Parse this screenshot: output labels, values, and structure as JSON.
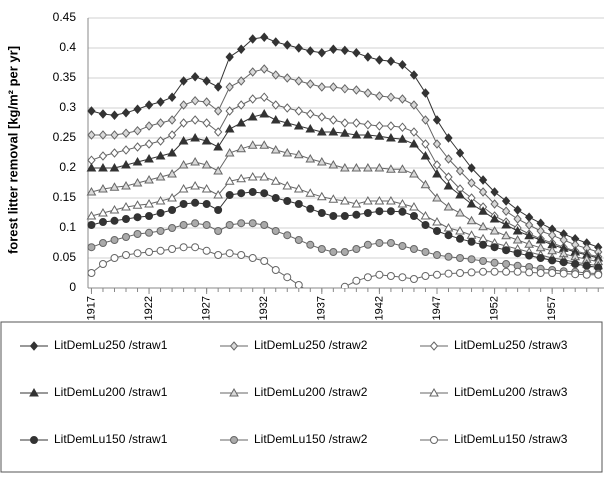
{
  "chart_data": {
    "type": "line",
    "ylabel": "forest litter removal [kg/m² per yr]",
    "x": [
      1917,
      1918,
      1919,
      1920,
      1921,
      1922,
      1923,
      1924,
      1925,
      1926,
      1927,
      1928,
      1929,
      1930,
      1931,
      1932,
      1933,
      1934,
      1935,
      1936,
      1937,
      1938,
      1939,
      1940,
      1941,
      1942,
      1943,
      1944,
      1945,
      1946,
      1947,
      1948,
      1949,
      1950,
      1951,
      1952,
      1953,
      1954,
      1955,
      1956,
      1957,
      1958,
      1959,
      1960,
      1961
    ],
    "xlim": [
      1916.7,
      1961.5
    ],
    "xticks": [
      1917,
      1922,
      1927,
      1932,
      1937,
      1942,
      1947,
      1952,
      1957
    ],
    "ylim": [
      0,
      0.45
    ],
    "yticks": [
      0,
      0.05,
      0.1,
      0.15,
      0.2,
      0.25,
      0.3,
      0.35,
      0.4,
      0.45
    ],
    "grid": true,
    "series": [
      {
        "name": "LitDemLu250 /straw1",
        "color": "#333333",
        "marker": "diamond",
        "fill": "#333333",
        "values": [
          0.295,
          0.29,
          0.288,
          0.292,
          0.298,
          0.305,
          0.31,
          0.318,
          0.345,
          0.352,
          0.345,
          0.335,
          0.385,
          0.398,
          0.415,
          0.418,
          0.41,
          0.405,
          0.4,
          0.395,
          0.392,
          0.398,
          0.396,
          0.392,
          0.385,
          0.38,
          0.378,
          0.372,
          0.355,
          0.325,
          0.28,
          0.25,
          0.225,
          0.2,
          0.18,
          0.16,
          0.145,
          0.13,
          0.118,
          0.108,
          0.098,
          0.09,
          0.082,
          0.075,
          0.068
        ]
      },
      {
        "name": "LitDemLu250 /straw2",
        "color": "#666666",
        "marker": "diamond",
        "fill": "#d9d9d9",
        "values": [
          0.255,
          0.255,
          0.255,
          0.258,
          0.262,
          0.27,
          0.275,
          0.28,
          0.305,
          0.312,
          0.31,
          0.295,
          0.335,
          0.345,
          0.36,
          0.365,
          0.355,
          0.35,
          0.345,
          0.34,
          0.335,
          0.335,
          0.332,
          0.33,
          0.325,
          0.32,
          0.318,
          0.315,
          0.305,
          0.28,
          0.24,
          0.215,
          0.195,
          0.175,
          0.16,
          0.14,
          0.128,
          0.115,
          0.105,
          0.095,
          0.088,
          0.08,
          0.072,
          0.066,
          0.06
        ]
      },
      {
        "name": "LitDemLu250 /straw3",
        "color": "#666666",
        "marker": "diamond",
        "fill": "#ffffff",
        "values": [
          0.213,
          0.22,
          0.225,
          0.23,
          0.235,
          0.24,
          0.245,
          0.255,
          0.275,
          0.28,
          0.275,
          0.26,
          0.295,
          0.305,
          0.315,
          0.318,
          0.305,
          0.3,
          0.295,
          0.29,
          0.285,
          0.28,
          0.275,
          0.275,
          0.272,
          0.27,
          0.27,
          0.268,
          0.26,
          0.24,
          0.205,
          0.185,
          0.165,
          0.15,
          0.135,
          0.12,
          0.11,
          0.1,
          0.09,
          0.082,
          0.075,
          0.068,
          0.062,
          0.057,
          0.052
        ]
      },
      {
        "name": "LitDemLu200 /straw1",
        "color": "#333333",
        "marker": "triangle",
        "fill": "#333333",
        "values": [
          0.2,
          0.2,
          0.2,
          0.205,
          0.21,
          0.215,
          0.22,
          0.225,
          0.245,
          0.25,
          0.245,
          0.235,
          0.265,
          0.275,
          0.285,
          0.29,
          0.28,
          0.275,
          0.27,
          0.265,
          0.26,
          0.26,
          0.258,
          0.255,
          0.255,
          0.253,
          0.25,
          0.248,
          0.24,
          0.22,
          0.19,
          0.17,
          0.155,
          0.14,
          0.128,
          0.115,
          0.105,
          0.095,
          0.087,
          0.08,
          0.072,
          0.066,
          0.06,
          0.055,
          0.05
        ]
      },
      {
        "name": "LitDemLu200 /straw2",
        "color": "#666666",
        "marker": "triangle",
        "fill": "#d9d9d9",
        "values": [
          0.16,
          0.165,
          0.168,
          0.17,
          0.175,
          0.18,
          0.185,
          0.19,
          0.205,
          0.21,
          0.205,
          0.195,
          0.225,
          0.232,
          0.238,
          0.238,
          0.23,
          0.225,
          0.222,
          0.215,
          0.21,
          0.205,
          0.2,
          0.2,
          0.2,
          0.2,
          0.198,
          0.198,
          0.19,
          0.172,
          0.15,
          0.135,
          0.125,
          0.112,
          0.102,
          0.095,
          0.087,
          0.08,
          0.073,
          0.067,
          0.062,
          0.057,
          0.052,
          0.048,
          0.044
        ]
      },
      {
        "name": "LitDemLu200 /straw3",
        "color": "#666666",
        "marker": "triangle",
        "fill": "#ffffff",
        "values": [
          0.12,
          0.125,
          0.13,
          0.135,
          0.138,
          0.14,
          0.145,
          0.15,
          0.165,
          0.17,
          0.165,
          0.155,
          0.178,
          0.182,
          0.185,
          0.185,
          0.178,
          0.17,
          0.165,
          0.158,
          0.152,
          0.148,
          0.145,
          0.14,
          0.145,
          0.145,
          0.145,
          0.14,
          0.135,
          0.12,
          0.11,
          0.1,
          0.095,
          0.088,
          0.082,
          0.075,
          0.07,
          0.065,
          0.06,
          0.055,
          0.05,
          0.047,
          0.043,
          0.04,
          0.037
        ]
      },
      {
        "name": "LitDemLu150 /straw1",
        "color": "#333333",
        "marker": "circle",
        "fill": "#333333",
        "values": [
          0.105,
          0.11,
          0.112,
          0.115,
          0.118,
          0.12,
          0.125,
          0.13,
          0.14,
          0.142,
          0.14,
          0.13,
          0.155,
          0.158,
          0.16,
          0.158,
          0.15,
          0.145,
          0.14,
          0.132,
          0.125,
          0.12,
          0.12,
          0.122,
          0.125,
          0.128,
          0.128,
          0.127,
          0.12,
          0.105,
          0.095,
          0.088,
          0.082,
          0.077,
          0.072,
          0.068,
          0.063,
          0.058,
          0.054,
          0.05,
          0.046,
          0.043,
          0.04,
          0.037,
          0.034
        ]
      },
      {
        "name": "LitDemLu150 /straw2",
        "color": "#666666",
        "marker": "circle",
        "fill": "#aaaaaa",
        "values": [
          0.068,
          0.075,
          0.08,
          0.085,
          0.09,
          0.092,
          0.095,
          0.1,
          0.105,
          0.108,
          0.105,
          0.095,
          0.105,
          0.108,
          0.108,
          0.105,
          0.095,
          0.088,
          0.08,
          0.072,
          0.065,
          0.06,
          0.06,
          0.065,
          0.072,
          0.075,
          0.075,
          0.07,
          0.065,
          0.06,
          0.055,
          0.052,
          0.05,
          0.048,
          0.045,
          0.042,
          0.04,
          0.037,
          0.035,
          0.032,
          0.03,
          0.028,
          0.027,
          0.025,
          0.024
        ]
      },
      {
        "name": "LitDemLu150 /straw3",
        "color": "#666666",
        "marker": "circle",
        "fill": "#ffffff",
        "values": [
          0.025,
          0.04,
          0.05,
          0.055,
          0.058,
          0.06,
          0.062,
          0.065,
          0.068,
          0.068,
          0.062,
          0.055,
          0.058,
          0.055,
          0.05,
          0.045,
          0.03,
          0.018,
          0.005,
          -0.008,
          -0.015,
          -0.01,
          0.002,
          0.012,
          0.018,
          0.022,
          0.02,
          0.018,
          0.015,
          0.02,
          0.022,
          0.024,
          0.025,
          0.026,
          0.027,
          0.027,
          0.027,
          0.027,
          0.026,
          0.025,
          0.025,
          0.024,
          0.023,
          0.022,
          0.022
        ]
      }
    ]
  }
}
